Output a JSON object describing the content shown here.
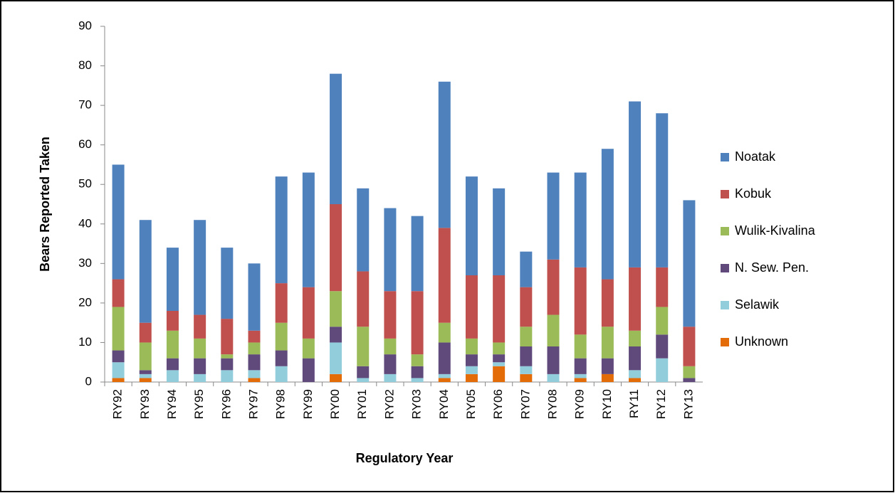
{
  "chart_data": {
    "type": "stacked_bar",
    "x_label": "Regulatory Year",
    "y_label": "Bears Reported Taken",
    "categories": [
      "RY92",
      "RY93",
      "RY94",
      "RY95",
      "RY96",
      "RY97",
      "RY98",
      "RY99",
      "RY00",
      "RY01",
      "RY02",
      "RY03",
      "RY04",
      "RY05",
      "RY06",
      "RY07",
      "RY08",
      "RY09",
      "RY10",
      "RY11",
      "RY12",
      "RY13"
    ],
    "series": [
      {
        "name": "Unknown",
        "color": "#e36c09",
        "values": [
          1,
          1,
          0,
          0,
          0,
          1,
          0,
          0,
          2,
          0,
          0,
          0,
          1,
          2,
          4,
          2,
          0,
          1,
          2,
          1,
          0,
          0
        ]
      },
      {
        "name": "Selawik",
        "color": "#92cddc",
        "values": [
          4,
          1,
          3,
          2,
          3,
          2,
          4,
          0,
          8,
          1,
          2,
          1,
          1,
          2,
          1,
          2,
          2,
          1,
          0,
          2,
          6,
          0
        ]
      },
      {
        "name": "N. Sew. Pen.",
        "color": "#604a7b",
        "values": [
          3,
          1,
          3,
          4,
          3,
          4,
          4,
          6,
          4,
          3,
          5,
          3,
          8,
          3,
          2,
          5,
          7,
          4,
          4,
          6,
          6,
          1
        ]
      },
      {
        "name": "Wulik-Kivalina",
        "color": "#9bbb59",
        "values": [
          11,
          7,
          7,
          5,
          1,
          3,
          7,
          5,
          9,
          10,
          4,
          3,
          5,
          4,
          3,
          5,
          8,
          6,
          8,
          4,
          7,
          3
        ]
      },
      {
        "name": "Kobuk",
        "color": "#c0504d",
        "values": [
          7,
          5,
          5,
          6,
          9,
          3,
          10,
          13,
          22,
          14,
          12,
          16,
          24,
          16,
          17,
          10,
          14,
          17,
          12,
          16,
          10,
          10
        ]
      },
      {
        "name": "Noatak",
        "color": "#4f81bd",
        "values": [
          29,
          26,
          16,
          24,
          18,
          17,
          27,
          29,
          33,
          21,
          21,
          19,
          37,
          25,
          22,
          9,
          22,
          24,
          33,
          42,
          39,
          32
        ]
      }
    ],
    "ylim": [
      0,
      90
    ],
    "yticks": [
      0,
      10,
      20,
      30,
      40,
      50,
      60,
      70,
      80,
      90
    ],
    "grid": false,
    "legend": "right"
  }
}
